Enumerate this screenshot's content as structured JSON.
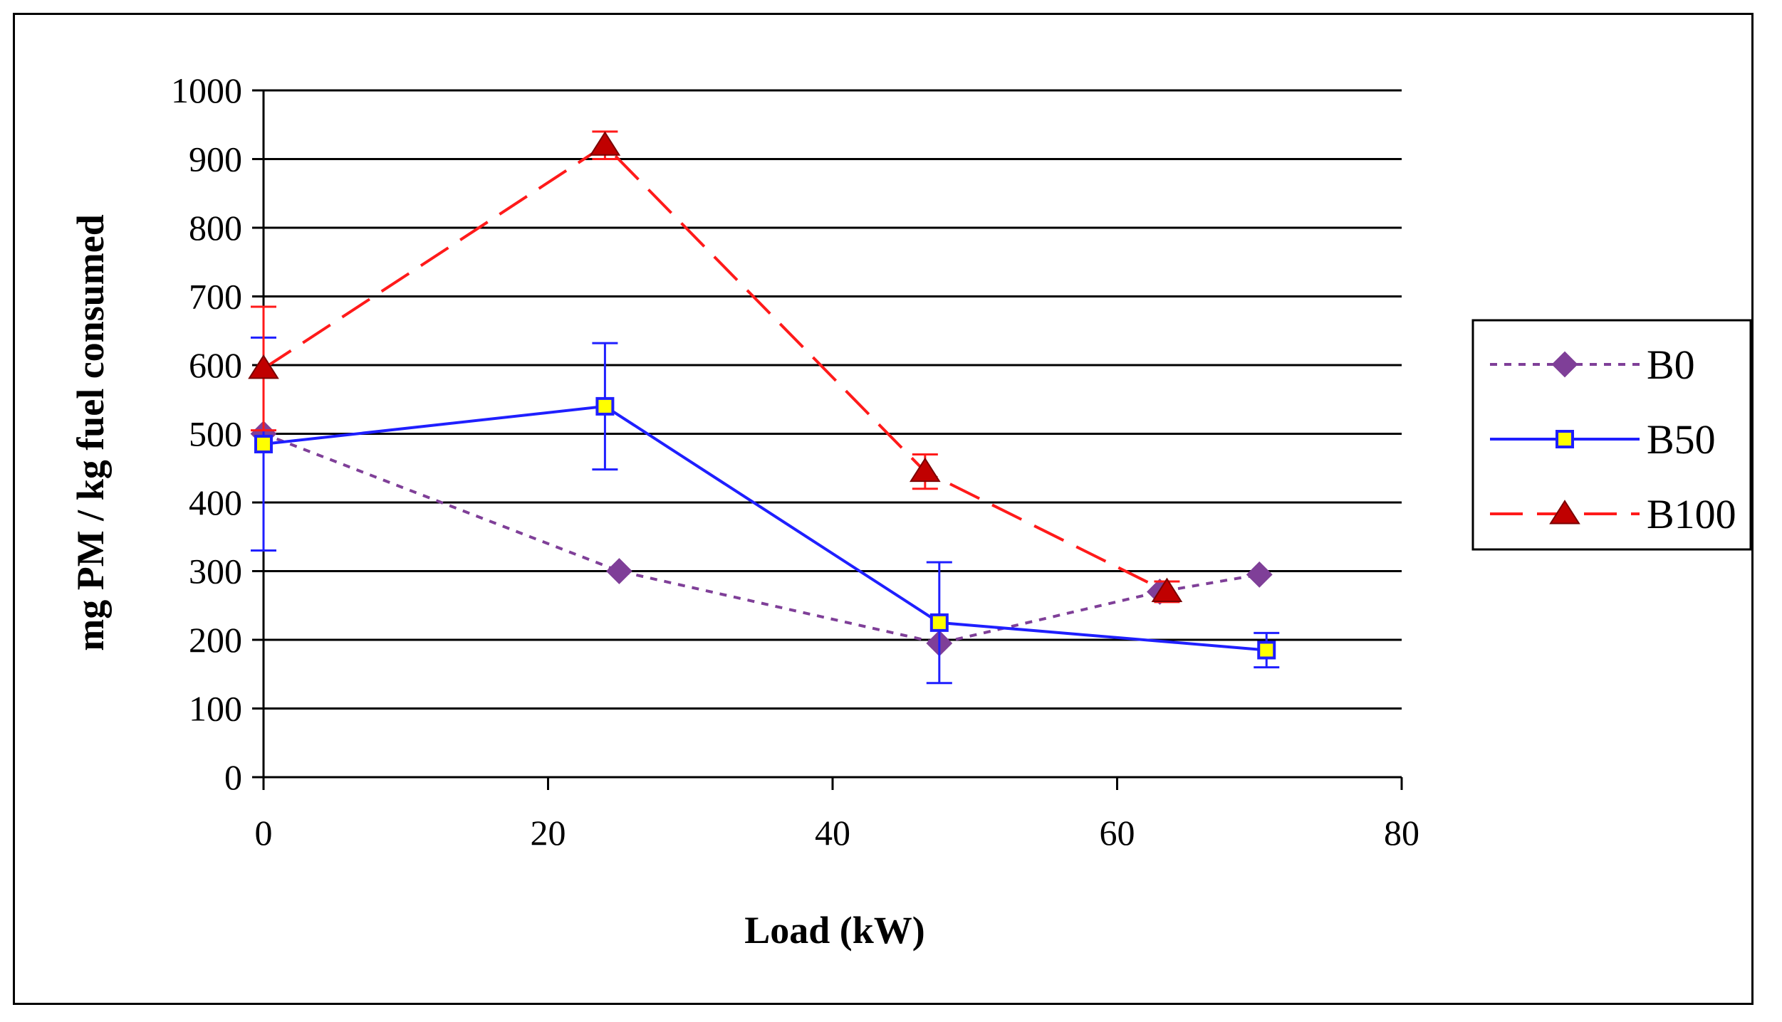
{
  "chart_data": {
    "type": "line",
    "title": "",
    "xlabel": "Load (kW)",
    "ylabel": "mg PM / kg fuel consumed",
    "xlim": [
      0,
      80
    ],
    "ylim": [
      0,
      1000
    ],
    "x_ticks": [
      "0",
      "20",
      "40",
      "60",
      "80"
    ],
    "x_tick_values": [
      0,
      20,
      40,
      60,
      80
    ],
    "y_ticks": [
      "0",
      "100",
      "200",
      "300",
      "400",
      "500",
      "600",
      "700",
      "800",
      "900",
      "1000"
    ],
    "y_tick_values": [
      0,
      100,
      200,
      300,
      400,
      500,
      600,
      700,
      800,
      900,
      1000
    ],
    "grid": "horizontal",
    "legend_position": "right",
    "series": [
      {
        "name": "B0",
        "color": "#7f3f98",
        "marker": "diamond",
        "line_style": "dotted",
        "x": [
          0,
          25,
          47.5,
          63,
          70
        ],
        "values": [
          500,
          300,
          195,
          270,
          295
        ],
        "errors": [
          null,
          null,
          null,
          null,
          null
        ]
      },
      {
        "name": "B50",
        "color": "#1f1fff",
        "marker": "square",
        "line_style": "solid",
        "x": [
          0,
          24,
          47.5,
          70.5
        ],
        "values": [
          485,
          540,
          225,
          185
        ],
        "errors": [
          155,
          92,
          88,
          25
        ]
      },
      {
        "name": "B100",
        "color": "#ff1a1a",
        "marker": "triangle",
        "line_style": "dashed",
        "x": [
          0,
          24,
          46.5,
          63.5
        ],
        "values": [
          595,
          920,
          445,
          270
        ],
        "errors": [
          90,
          20,
          25,
          15
        ]
      }
    ]
  }
}
